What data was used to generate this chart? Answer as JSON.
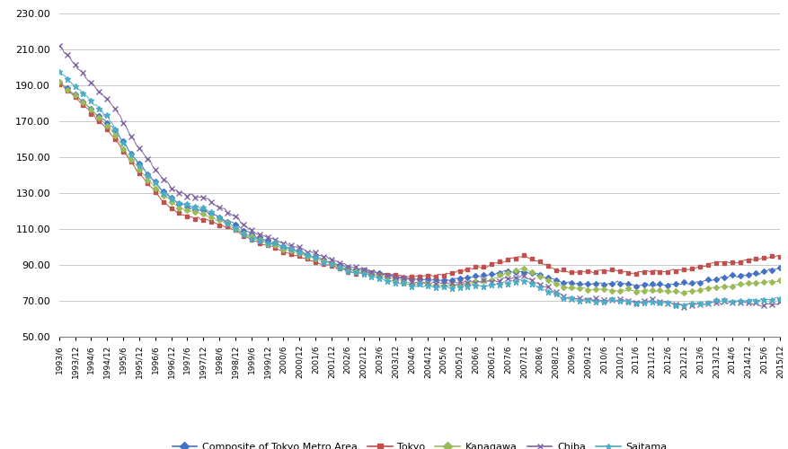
{
  "title": "",
  "ylim": [
    50.0,
    230.0
  ],
  "yticks": [
    50.0,
    70.0,
    90.0,
    110.0,
    130.0,
    150.0,
    170.0,
    190.0,
    210.0,
    230.0
  ],
  "legend": [
    "Composite of Tokyo Metro Area",
    "Tokyo",
    "Kanagawa",
    "Chiba",
    "Saitama"
  ],
  "colors": {
    "Composite of Tokyo Metro Area": "#4472C4",
    "Tokyo": "#C0504D",
    "Kanagawa": "#9BBB59",
    "Chiba": "#8064A2",
    "Saitama": "#4BACC6"
  },
  "background_color": "#FFFFFF",
  "plot_bg_color": "#FFFFFF",
  "grid_color": "#BFBFBF"
}
